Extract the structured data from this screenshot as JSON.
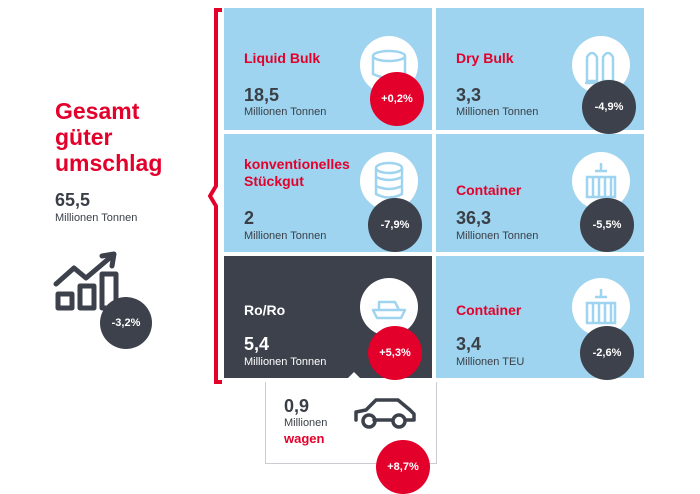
{
  "summary": {
    "title_lines": [
      "Gesamt",
      "güter",
      "umschlag"
    ],
    "value": "65,5",
    "unit": "Millionen Tonnen",
    "change": "-3,2%",
    "icon": "growth-chart-icon"
  },
  "tiles": [
    {
      "title": "Liquid Bulk",
      "value": "18,5",
      "unit": "Millionen Tonnen",
      "change": "+0,2%",
      "change_color": "red",
      "icon": "tank-icon"
    },
    {
      "title": "Dry Bulk",
      "value": "3,3",
      "unit": "Millionen Tonnen",
      "change": "-4,9%",
      "change_color": "dark",
      "icon": "silo-icon"
    },
    {
      "title": "konventionelles Stückgut",
      "value": "2",
      "unit": "Millionen Tonnen",
      "change": "-7,9%",
      "change_color": "dark",
      "icon": "cable-reel-icon"
    },
    {
      "title": "Container",
      "value": "36,3",
      "unit": "Millionen Tonnen",
      "change": "-5,5%",
      "change_color": "dark",
      "icon": "container-crane-icon"
    },
    {
      "title": "Ro/Ro",
      "value": "5,4",
      "unit": "Millionen Tonnen",
      "change": "+5,3%",
      "change_color": "red",
      "icon": "ship-icon"
    },
    {
      "title": "Container",
      "value": "3,4",
      "unit": "Millionen TEU",
      "change": "-2,6%",
      "change_color": "dark",
      "icon": "container-crane-icon"
    }
  ],
  "sub": {
    "value": "0,9",
    "unit_line1": "Millionen",
    "unit_line2": "wagen",
    "change": "+8,7%",
    "icon": "car-icon"
  },
  "colors": {
    "accent_red": "#e3002b",
    "tile_blue": "#9ed4ef",
    "dark": "#3c414b"
  }
}
